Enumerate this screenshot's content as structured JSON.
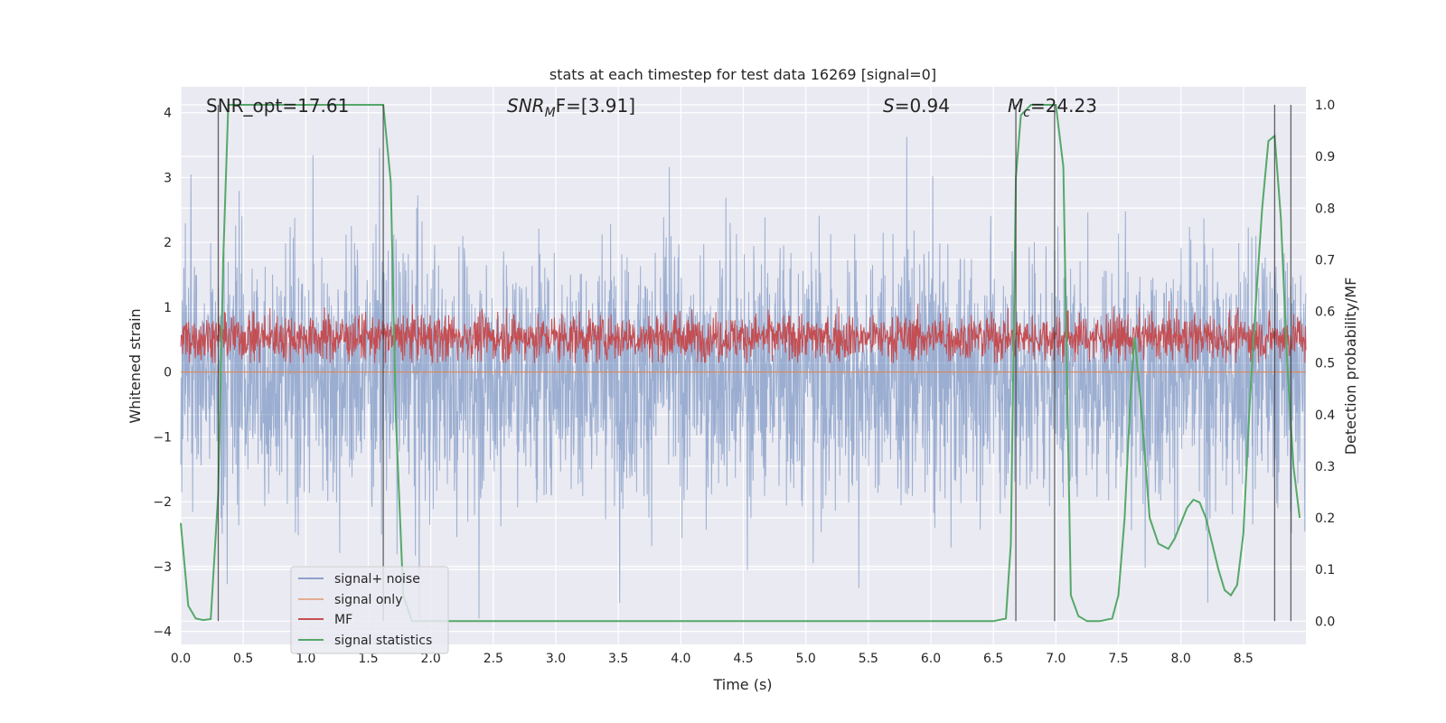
{
  "chart_data": {
    "type": "line",
    "title": "stats at each timestep for test data 16269 [signal=0]",
    "xlabel": "Time (s)",
    "ylabel": "Whitened strain",
    "y2label": "Detection probability/MF",
    "xlim": [
      0,
      9.0
    ],
    "ylim": [
      -4.2,
      4.4
    ],
    "y2lim": [
      -0.045,
      1.035
    ],
    "xticks": [
      "0.0",
      "0.5",
      "1.0",
      "1.5",
      "2.0",
      "2.5",
      "3.0",
      "3.5",
      "4.0",
      "4.5",
      "5.0",
      "5.5",
      "6.0",
      "6.5",
      "7.0",
      "7.5",
      "8.0",
      "8.5"
    ],
    "yticks": [
      "4",
      "3",
      "2",
      "1",
      "0",
      "−1",
      "−2",
      "−3",
      "−4"
    ],
    "y2ticks": [
      "1.0",
      "0.9",
      "0.8",
      "0.7",
      "0.6",
      "0.5",
      "0.4",
      "0.3",
      "0.2",
      "0.1",
      "0.0"
    ],
    "grid": true,
    "legend_position": "lower-left",
    "annotations": {
      "snr_opt": "SNR_opt=17.61",
      "snr_mf_main": "SNR",
      "snr_mf_sub": "M",
      "snr_mf_rest": "F=[3.91]",
      "s_main": "S",
      "s_rest": "=0.94",
      "mc_main": "M",
      "mc_sub": "c",
      "mc_rest": "=24.23"
    },
    "series": [
      {
        "name": "signal+ noise",
        "color": "#4c72b0",
        "axis": "left",
        "envelope_p95": 1.7,
        "envelope_peak": 4.0,
        "envelope_min": -3.8
      },
      {
        "name": "signal only",
        "color": "#dd8452",
        "axis": "left",
        "values_constant": 0
      },
      {
        "name": "MF",
        "color": "#c44e52",
        "axis": "right",
        "band": [
          0.5,
          0.6
        ],
        "peak": 0.62
      },
      {
        "name": "signal statistics",
        "color": "#55a868",
        "axis": "right",
        "x": [
          0.0,
          0.06,
          0.12,
          0.18,
          0.24,
          0.3,
          0.34,
          0.38,
          0.45,
          0.6,
          0.8,
          1.0,
          1.2,
          1.4,
          1.55,
          1.62,
          1.68,
          1.72,
          1.78,
          1.85,
          2.0,
          3.0,
          4.0,
          5.0,
          6.0,
          6.5,
          6.6,
          6.64,
          6.68,
          6.72,
          6.8,
          6.9,
          7.0,
          7.06,
          7.12,
          7.18,
          7.25,
          7.35,
          7.45,
          7.5,
          7.55,
          7.6,
          7.63,
          7.68,
          7.75,
          7.82,
          7.9,
          7.95,
          8.0,
          8.05,
          8.1,
          8.15,
          8.2,
          8.25,
          8.3,
          8.35,
          8.4,
          8.45,
          8.5,
          8.55,
          8.6,
          8.65,
          8.7,
          8.75,
          8.8,
          8.85,
          8.9,
          8.95
        ],
        "y": [
          0.19,
          0.03,
          0.005,
          0.002,
          0.004,
          0.25,
          0.7,
          1.0,
          1.0,
          1.0,
          1.0,
          1.0,
          1.0,
          1.0,
          1.0,
          1.0,
          0.85,
          0.4,
          0.05,
          0.0,
          0.0,
          0.0,
          0.0,
          0.0,
          0.0,
          0.0,
          0.005,
          0.15,
          0.86,
          0.98,
          1.0,
          1.0,
          1.0,
          0.88,
          0.05,
          0.01,
          0.0,
          0.0,
          0.005,
          0.05,
          0.2,
          0.45,
          0.55,
          0.42,
          0.2,
          0.15,
          0.14,
          0.16,
          0.19,
          0.22,
          0.235,
          0.23,
          0.2,
          0.15,
          0.1,
          0.06,
          0.05,
          0.07,
          0.17,
          0.42,
          0.62,
          0.8,
          0.93,
          0.94,
          0.78,
          0.5,
          0.3,
          0.2
        ]
      }
    ],
    "vertical_lines_x": [
      0.3,
      1.62,
      6.68,
      6.99,
      8.75,
      8.88
    ]
  }
}
